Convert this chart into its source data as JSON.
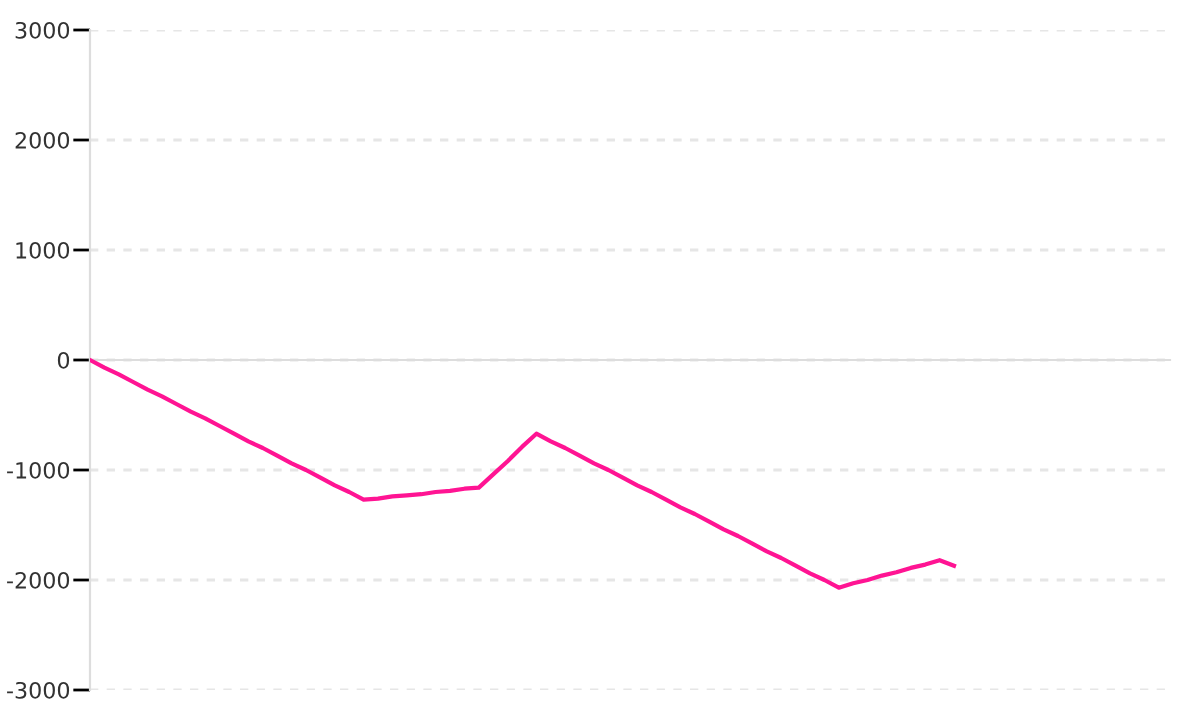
{
  "chart_data": {
    "type": "line",
    "categories": [
      null,
      null,
      null,
      null,
      null,
      null,
      null,
      null,
      null,
      null,
      null,
      null,
      null,
      null,
      null,
      null,
      null,
      null,
      null,
      null,
      null,
      null,
      null,
      null,
      null,
      null,
      null,
      null,
      null,
      null,
      null,
      null,
      null,
      null,
      null,
      null,
      null,
      null,
      null,
      null,
      null,
      null,
      null,
      null,
      null,
      null,
      null,
      null,
      null,
      null,
      null,
      null,
      null,
      null,
      null,
      null,
      null,
      null,
      null,
      null,
      null,
      null,
      null,
      null,
      null,
      null,
      null,
      null,
      null,
      null,
      null,
      null,
      null,
      null,
      null,
      null
    ],
    "series": [
      {
        "color": "#ff1493",
        "values": [
          0,
          -70,
          -130,
          -200,
          -270,
          -330,
          -400,
          -470,
          -530,
          -600,
          -670,
          -740,
          -800,
          -870,
          -940,
          -1000,
          -1070,
          -1140,
          -1200,
          -1270,
          -1260,
          -1240,
          -1230,
          -1220,
          -1200,
          -1190,
          -1170,
          -1160,
          -1040,
          -920,
          -790,
          -670,
          -740,
          -800,
          -870,
          -940,
          -1000,
          -1070,
          -1140,
          -1200,
          -1270,
          -1340,
          -1400,
          -1470,
          -1540,
          -1600,
          -1670,
          -1740,
          -1800,
          -1870,
          -1940,
          -2000,
          -2070,
          -2030,
          -2000,
          -1960,
          -1930,
          -1890,
          -1860,
          -1820,
          -1870,
          null,
          null,
          null,
          null,
          null,
          null,
          null,
          null,
          null,
          null,
          null,
          null,
          null,
          null,
          null
        ]
      }
    ],
    "ylim": [
      -3000,
      3000
    ],
    "yticks": [
      {
        "value": -3000,
        "label": "-3000"
      },
      {
        "value": -2000,
        "label": "-2000"
      },
      {
        "value": -1000,
        "label": "-1000"
      },
      0,
      1000,
      2000,
      3000
    ],
    "grid": "y",
    "tick_labels": "y",
    "marker": "none",
    "line_style": "solid"
  }
}
